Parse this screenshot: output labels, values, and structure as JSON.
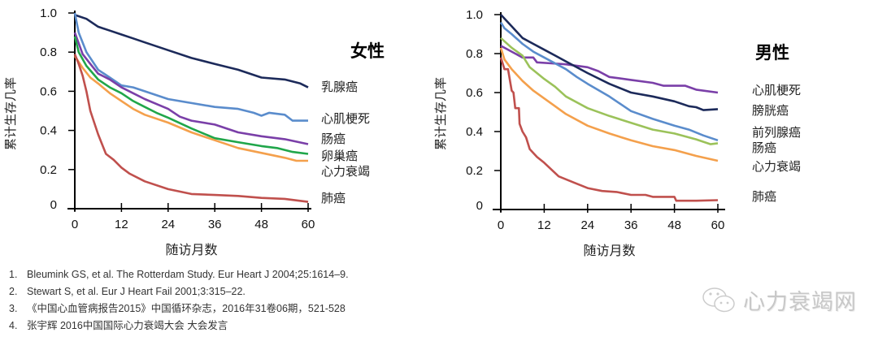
{
  "chart_data": [
    {
      "type": "line",
      "title": "女性",
      "xlabel": "随访月数",
      "ylabel": "累计生存几率",
      "xlim": [
        0,
        60
      ],
      "ylim": [
        0,
        1.0
      ],
      "xticks": [
        "0",
        "12",
        "24",
        "36",
        "48",
        "60"
      ],
      "yticks": [
        "0",
        "0.2",
        "0.4",
        "0.6",
        "0.8",
        "1.0"
      ],
      "grid": false,
      "legend": "right (labels at line ends)",
      "series": [
        {
          "name": "乳腺癌",
          "color": "#1c2a5a",
          "x": [
            0,
            3,
            6,
            9,
            12,
            15,
            18,
            24,
            30,
            36,
            42,
            48,
            54,
            58,
            60
          ],
          "y": [
            0.99,
            0.97,
            0.93,
            0.91,
            0.89,
            0.87,
            0.85,
            0.81,
            0.77,
            0.74,
            0.71,
            0.67,
            0.66,
            0.64,
            0.62
          ]
        },
        {
          "name": "心肌梗死",
          "color": "#5a8ccc",
          "x": [
            0,
            1,
            3,
            6,
            9,
            12,
            15,
            18,
            24,
            30,
            36,
            42,
            46,
            48,
            50,
            54,
            56,
            60
          ],
          "y": [
            1.0,
            0.9,
            0.8,
            0.71,
            0.67,
            0.63,
            0.62,
            0.6,
            0.56,
            0.54,
            0.52,
            0.51,
            0.49,
            0.475,
            0.49,
            0.48,
            0.45,
            0.45
          ]
        },
        {
          "name": "肠癌",
          "color": "#7a3fa8",
          "x": [
            0,
            2,
            4,
            6,
            9,
            12,
            15,
            18,
            24,
            27,
            30,
            36,
            42,
            48,
            54,
            60
          ],
          "y": [
            0.9,
            0.79,
            0.74,
            0.69,
            0.66,
            0.62,
            0.59,
            0.56,
            0.51,
            0.47,
            0.45,
            0.43,
            0.39,
            0.37,
            0.355,
            0.33
          ]
        },
        {
          "name": "卵巢癌",
          "color": "#20a64a",
          "x": [
            0,
            1,
            3,
            6,
            9,
            12,
            15,
            18,
            21,
            24,
            30,
            36,
            42,
            48,
            52,
            56,
            60
          ],
          "y": [
            0.88,
            0.8,
            0.73,
            0.66,
            0.62,
            0.59,
            0.55,
            0.52,
            0.49,
            0.465,
            0.41,
            0.36,
            0.34,
            0.32,
            0.31,
            0.29,
            0.28
          ]
        },
        {
          "name": "心力衰竭",
          "color": "#f4a04c",
          "x": [
            0,
            2,
            4,
            6,
            9,
            12,
            15,
            18,
            24,
            30,
            36,
            42,
            48,
            54,
            57,
            60
          ],
          "y": [
            0.78,
            0.72,
            0.67,
            0.64,
            0.59,
            0.55,
            0.51,
            0.48,
            0.44,
            0.39,
            0.35,
            0.31,
            0.285,
            0.26,
            0.245,
            0.245
          ]
        },
        {
          "name": "肺癌",
          "color": "#c0504d",
          "x": [
            0,
            1,
            2,
            3,
            4,
            5,
            6,
            7,
            8,
            10,
            12,
            14,
            18,
            24,
            30,
            36,
            42,
            48,
            54,
            60
          ],
          "y": [
            0.79,
            0.74,
            0.68,
            0.6,
            0.5,
            0.44,
            0.38,
            0.33,
            0.28,
            0.25,
            0.21,
            0.18,
            0.14,
            0.1,
            0.075,
            0.07,
            0.065,
            0.055,
            0.05,
            0.035
          ]
        }
      ]
    },
    {
      "type": "line",
      "title": "男性",
      "xlabel": "随访月数",
      "ylabel": "累计生存几率",
      "xlim": [
        0,
        60
      ],
      "ylim": [
        0,
        1.0
      ],
      "xticks": [
        "0",
        "12",
        "24",
        "36",
        "48",
        "60"
      ],
      "yticks": [
        "0",
        "0.2",
        "0.4",
        "0.6",
        "0.8",
        "1.0"
      ],
      "grid": false,
      "legend": "right (labels at line ends)",
      "series": [
        {
          "name": "心肌梗死",
          "color": "#7a3fa8",
          "x": [
            0,
            4,
            6,
            9,
            10,
            14,
            18,
            24,
            27,
            30,
            36,
            42,
            45,
            48,
            51,
            54,
            60
          ],
          "y": [
            0.84,
            0.8,
            0.78,
            0.78,
            0.755,
            0.75,
            0.745,
            0.73,
            0.71,
            0.68,
            0.665,
            0.65,
            0.635,
            0.635,
            0.635,
            0.615,
            0.6
          ]
        },
        {
          "name": "膀胱癌",
          "color": "#1c2a5a",
          "x": [
            0,
            3,
            6,
            9,
            12,
            15,
            18,
            24,
            30,
            36,
            42,
            48,
            52,
            54,
            56,
            60
          ],
          "y": [
            1.0,
            0.94,
            0.88,
            0.85,
            0.82,
            0.79,
            0.76,
            0.7,
            0.645,
            0.6,
            0.58,
            0.555,
            0.53,
            0.525,
            0.51,
            0.515
          ]
        },
        {
          "name": "前列腺癌",
          "color": "#5a8ccc",
          "x": [
            0,
            1,
            3,
            6,
            9,
            12,
            15,
            18,
            21,
            24,
            30,
            36,
            42,
            48,
            52,
            56,
            60
          ],
          "y": [
            0.96,
            0.93,
            0.9,
            0.85,
            0.81,
            0.78,
            0.75,
            0.72,
            0.68,
            0.645,
            0.58,
            0.505,
            0.465,
            0.43,
            0.41,
            0.38,
            0.355
          ]
        },
        {
          "name": "肠癌",
          "color": "#9bc25a",
          "x": [
            0,
            3,
            6,
            8,
            12,
            15,
            18,
            24,
            30,
            36,
            42,
            48,
            54,
            58,
            60
          ],
          "y": [
            0.88,
            0.83,
            0.79,
            0.73,
            0.67,
            0.63,
            0.58,
            0.52,
            0.48,
            0.445,
            0.41,
            0.39,
            0.36,
            0.335,
            0.34
          ]
        },
        {
          "name": "心力衰竭",
          "color": "#f4a04c",
          "x": [
            0,
            1,
            3,
            6,
            9,
            12,
            15,
            18,
            24,
            30,
            36,
            42,
            48,
            54,
            60
          ],
          "y": [
            0.83,
            0.77,
            0.72,
            0.66,
            0.61,
            0.57,
            0.53,
            0.49,
            0.43,
            0.39,
            0.355,
            0.325,
            0.305,
            0.275,
            0.25
          ]
        },
        {
          "name": "肺癌",
          "color": "#c0504d",
          "x": [
            0,
            1,
            2,
            3,
            3.5,
            4,
            5,
            5.2,
            6,
            7,
            8,
            10,
            12,
            16,
            20,
            24,
            28,
            32,
            36,
            40,
            42,
            48,
            48.5,
            54,
            60
          ],
          "y": [
            0.78,
            0.72,
            0.72,
            0.61,
            0.6,
            0.52,
            0.52,
            0.44,
            0.4,
            0.37,
            0.31,
            0.27,
            0.24,
            0.17,
            0.14,
            0.11,
            0.095,
            0.09,
            0.075,
            0.075,
            0.065,
            0.065,
            0.045,
            0.045,
            0.048
          ]
        }
      ]
    }
  ],
  "references": [
    {
      "num": "1.",
      "text": "Bleumink GS, et al. The Rotterdam Study. Eur Heart J 2004;25:1614–9."
    },
    {
      "num": "2.",
      "text": "Stewart S, et al. Eur J Heart Fail 2001;3:315–22."
    },
    {
      "num": "3.",
      "text": "《中国心血管病报告2015》中国循环杂志，2016年31卷06期，521-528"
    },
    {
      "num": "4.",
      "text": "张宇辉 2016中国国际心力衰竭大会 大会发言"
    }
  ],
  "watermark": {
    "text": "心力衰竭网",
    "icon": "wechat-icon"
  }
}
